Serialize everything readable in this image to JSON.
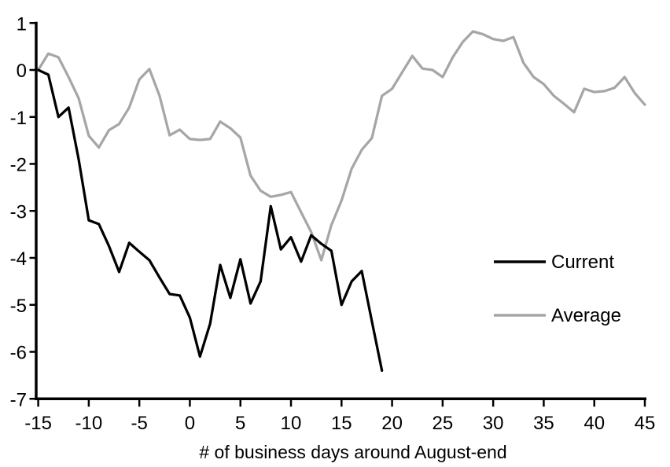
{
  "legend": {
    "current": "Current",
    "average": "Average"
  },
  "colors": {
    "current": "#000000",
    "average": "#a6a6a6",
    "axis": "#000000",
    "background": "#ffffff"
  },
  "chart_data": {
    "type": "line",
    "title": "",
    "xlabel": "# of business days around August-end",
    "ylabel": "",
    "xlim": [
      -15,
      45
    ],
    "ylim": [
      -7,
      1
    ],
    "x_ticks": [
      -15,
      -10,
      -5,
      0,
      5,
      10,
      15,
      20,
      25,
      30,
      35,
      40,
      45
    ],
    "y_ticks": [
      1,
      0,
      -1,
      -2,
      -3,
      -4,
      -5,
      -6,
      -7
    ],
    "grid": false,
    "legend_position": "right-middle",
    "series": [
      {
        "name": "Current",
        "color": "#000000",
        "x": [
          -15,
          -14,
          -13,
          -12,
          -11,
          -10,
          -9,
          -8,
          -7,
          -6,
          -5,
          -4,
          -3,
          -2,
          -1,
          0,
          1,
          2,
          3,
          4,
          5,
          6,
          7,
          8,
          9,
          10,
          11,
          12,
          13,
          14,
          15,
          16,
          17,
          18,
          19
        ],
        "values": [
          0,
          -0.1,
          -1.0,
          -0.8,
          -1.9,
          -3.2,
          -3.28,
          -3.75,
          -4.3,
          -3.68,
          -3.87,
          -4.05,
          -4.42,
          -4.77,
          -4.8,
          -5.27,
          -6.1,
          -5.4,
          -4.15,
          -4.85,
          -4.03,
          -4.97,
          -4.5,
          -2.9,
          -3.82,
          -3.56,
          -4.08,
          -3.52,
          -3.7,
          -3.85,
          -5.0,
          -4.5,
          -4.28,
          -5.35,
          -6.4
        ]
      },
      {
        "name": "Average",
        "color": "#a6a6a6",
        "x": [
          -15,
          -14,
          -13,
          -12,
          -11,
          -10,
          -9,
          -8,
          -7,
          -6,
          -5,
          -4,
          -3,
          -2,
          -1,
          0,
          1,
          2,
          3,
          4,
          5,
          6,
          7,
          8,
          9,
          10,
          11,
          12,
          13,
          14,
          15,
          16,
          17,
          18,
          19,
          20,
          21,
          22,
          23,
          24,
          25,
          26,
          27,
          28,
          29,
          30,
          31,
          32,
          33,
          34,
          35,
          36,
          37,
          38,
          39,
          40,
          41,
          42,
          43,
          44,
          45
        ],
        "values": [
          0,
          0.35,
          0.27,
          -0.15,
          -0.6,
          -1.4,
          -1.65,
          -1.28,
          -1.15,
          -0.8,
          -0.2,
          0.02,
          -0.55,
          -1.39,
          -1.27,
          -1.47,
          -1.49,
          -1.47,
          -1.1,
          -1.24,
          -1.44,
          -2.25,
          -2.57,
          -2.7,
          -2.66,
          -2.6,
          -3.03,
          -3.45,
          -4.05,
          -3.3,
          -2.78,
          -2.1,
          -1.7,
          -1.45,
          -0.55,
          -0.4,
          -0.05,
          0.3,
          0.03,
          0.0,
          -0.15,
          0.27,
          0.6,
          0.82,
          0.76,
          0.66,
          0.62,
          0.7,
          0.15,
          -0.15,
          -0.3,
          -0.55,
          -0.72,
          -0.9,
          -0.4,
          -0.47,
          -0.45,
          -0.38,
          -0.15,
          -0.49,
          -0.74
        ]
      }
    ]
  }
}
